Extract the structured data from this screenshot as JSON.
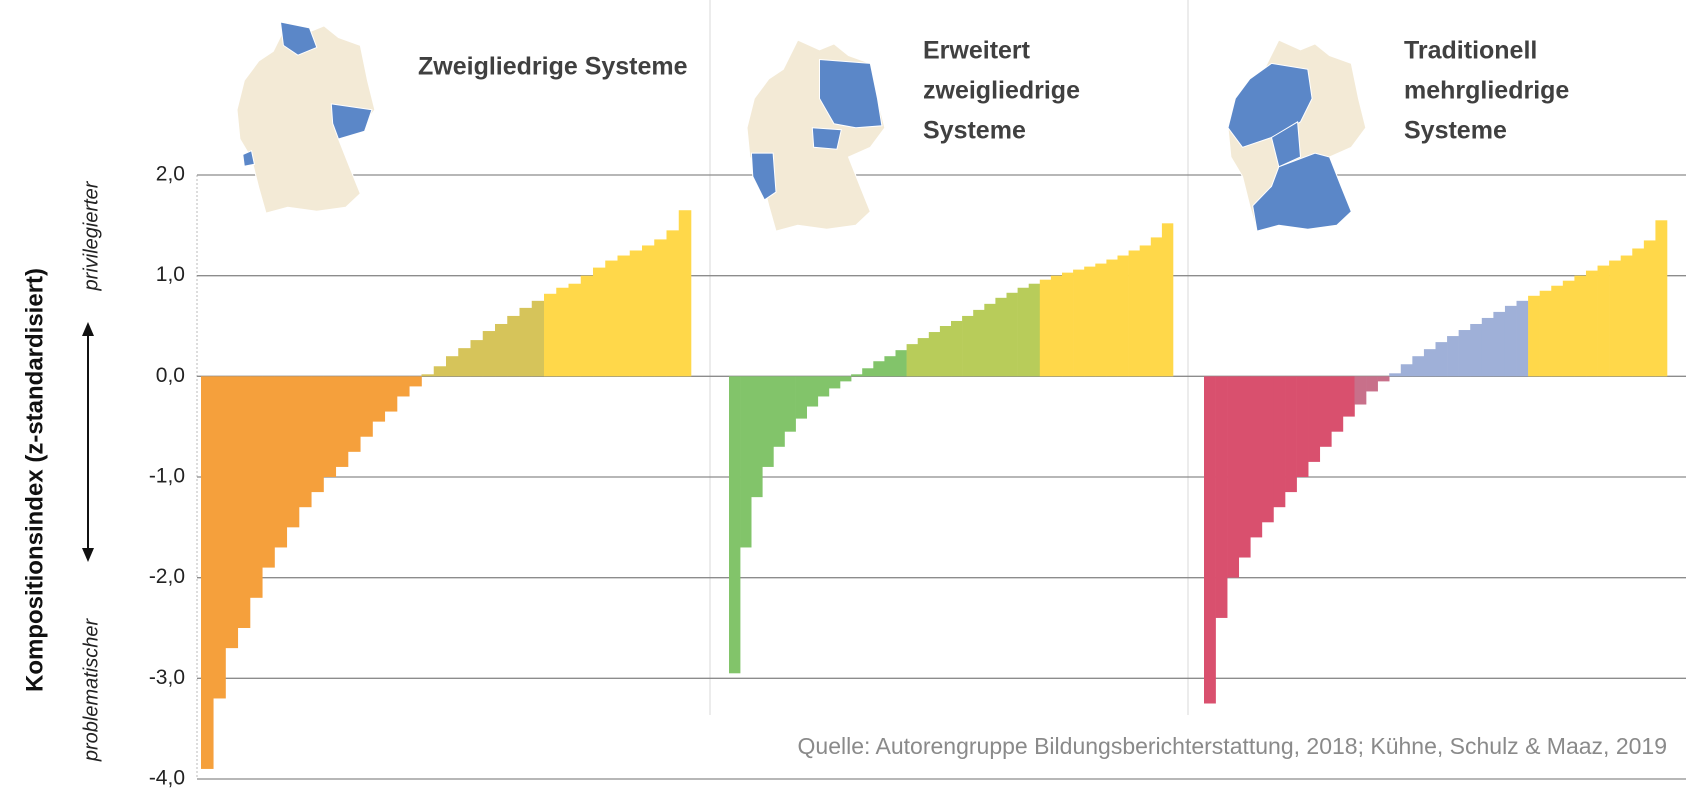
{
  "chart_data": {
    "type": "bar",
    "ylabel": "Kompositionsindex (z-standardisiert)",
    "arrow_top": "privilegierter",
    "arrow_bottom": "problematischer",
    "source": "Quelle: Autorengruppe Bildungsberichterstattung, 2018; Kühne, Schulz & Maaz, 2019",
    "ylim": [
      -4,
      2
    ],
    "yticks": [
      {
        "value": -4,
        "label": "-4,0"
      },
      {
        "value": -3,
        "label": "-3,0"
      },
      {
        "value": -2,
        "label": "-2,0"
      },
      {
        "value": -1,
        "label": "-1,0"
      },
      {
        "value": 0,
        "label": "0,0"
      },
      {
        "value": 1,
        "label": "1,0"
      },
      {
        "value": 2,
        "label": "2,0"
      }
    ],
    "grid": true,
    "series": [
      {
        "name": [
          "Zweigliedrige Systeme"
        ],
        "values": [
          -3.9,
          -3.2,
          -2.7,
          -2.5,
          -2.2,
          -1.9,
          -1.7,
          -1.5,
          -1.3,
          -1.15,
          -1.0,
          -0.9,
          -0.75,
          -0.6,
          -0.45,
          -0.35,
          -0.2,
          -0.1,
          0.02,
          0.1,
          0.2,
          0.28,
          0.36,
          0.45,
          0.52,
          0.6,
          0.68,
          0.75,
          0.82,
          0.88,
          0.92,
          1.0,
          1.08,
          1.15,
          1.2,
          1.25,
          1.3,
          1.36,
          1.45,
          1.65
        ],
        "colors": [
          "#f5a03c",
          "#f5a03c",
          "#f5a03c",
          "#f5a03c",
          "#f5a03c",
          "#f5a03c",
          "#f5a03c",
          "#f5a03c",
          "#f5a03c",
          "#f5a03c",
          "#f5a03c",
          "#f5a03c",
          "#f5a03c",
          "#f5a03c",
          "#f5a03c",
          "#f5a03c",
          "#f5a03c",
          "#f5a03c",
          "#d6c45a",
          "#d6c45a",
          "#d6c45a",
          "#d6c45a",
          "#d6c45a",
          "#d6c45a",
          "#d6c45a",
          "#d6c45a",
          "#d6c45a",
          "#d6c45a",
          "#ffd84a",
          "#ffd84a",
          "#ffd84a",
          "#ffd84a",
          "#ffd84a",
          "#ffd84a",
          "#ffd84a",
          "#ffd84a",
          "#ffd84a",
          "#ffd84a",
          "#ffd84a",
          "#ffd84a"
        ]
      },
      {
        "name": [
          "Erweitert",
          "zweigliedrige",
          "Systeme"
        ],
        "values": [
          -2.95,
          -1.7,
          -1.2,
          -0.9,
          -0.7,
          -0.55,
          -0.42,
          -0.3,
          -0.2,
          -0.12,
          -0.05,
          0.02,
          0.08,
          0.15,
          0.2,
          0.26,
          0.32,
          0.38,
          0.44,
          0.5,
          0.55,
          0.6,
          0.66,
          0.72,
          0.78,
          0.83,
          0.88,
          0.92,
          0.96,
          1.0,
          1.03,
          1.06,
          1.09,
          1.12,
          1.16,
          1.2,
          1.25,
          1.3,
          1.38,
          1.52
        ],
        "colors": [
          "#82c46a",
          "#82c46a",
          "#82c46a",
          "#82c46a",
          "#82c46a",
          "#82c46a",
          "#82c46a",
          "#82c46a",
          "#82c46a",
          "#82c46a",
          "#82c46a",
          "#82c46a",
          "#82c46a",
          "#82c46a",
          "#82c46a",
          "#82c46a",
          "#b8cc5a",
          "#b8cc5a",
          "#b8cc5a",
          "#b8cc5a",
          "#b8cc5a",
          "#b8cc5a",
          "#b8cc5a",
          "#b8cc5a",
          "#b8cc5a",
          "#b8cc5a",
          "#b8cc5a",
          "#b8cc5a",
          "#ffd84a",
          "#ffd84a",
          "#ffd84a",
          "#ffd84a",
          "#ffd84a",
          "#ffd84a",
          "#ffd84a",
          "#ffd84a",
          "#ffd84a",
          "#ffd84a",
          "#ffd84a",
          "#ffd84a"
        ]
      },
      {
        "name": [
          "Traditionell",
          "mehrgliedrige",
          "Systeme"
        ],
        "values": [
          -3.25,
          -2.4,
          -2.0,
          -1.8,
          -1.6,
          -1.45,
          -1.3,
          -1.15,
          -1.0,
          -0.85,
          -0.7,
          -0.55,
          -0.4,
          -0.28,
          -0.15,
          -0.05,
          0.03,
          0.12,
          0.2,
          0.27,
          0.34,
          0.4,
          0.46,
          0.52,
          0.58,
          0.64,
          0.7,
          0.75,
          0.8,
          0.85,
          0.9,
          0.95,
          1.0,
          1.05,
          1.1,
          1.15,
          1.2,
          1.27,
          1.35,
          1.55
        ],
        "colors": [
          "#d9506e",
          "#d9506e",
          "#d9506e",
          "#d9506e",
          "#d9506e",
          "#d9506e",
          "#d9506e",
          "#d9506e",
          "#d9506e",
          "#d9506e",
          "#d9506e",
          "#d9506e",
          "#d9506e",
          "#c8708a",
          "#c8708a",
          "#c8708a",
          "#9fb0d8",
          "#9fb0d8",
          "#9fb0d8",
          "#9fb0d8",
          "#9fb0d8",
          "#9fb0d8",
          "#9fb0d8",
          "#9fb0d8",
          "#9fb0d8",
          "#9fb0d8",
          "#9fb0d8",
          "#9fb0d8",
          "#ffd84a",
          "#ffd84a",
          "#ffd84a",
          "#ffd84a",
          "#ffd84a",
          "#ffd84a",
          "#ffd84a",
          "#ffd84a",
          "#ffd84a",
          "#ffd84a",
          "#ffd84a",
          "#ffd84a"
        ]
      }
    ]
  }
}
